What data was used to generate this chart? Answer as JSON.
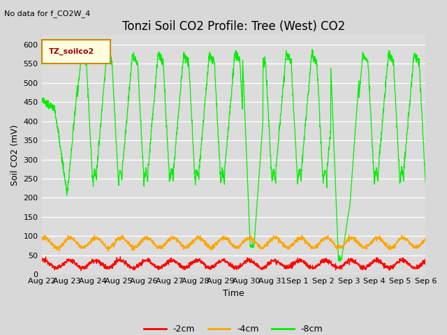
{
  "title": "Tonzi Soil CO2 Profile: Tree (West) CO2",
  "top_left_text": "No data for f_CO2W_4",
  "ylabel": "Soil CO2 (mV)",
  "xlabel": "Time",
  "legend_label": "TZ_soilco2",
  "series_labels": [
    "-2cm",
    "-4cm",
    "-8cm"
  ],
  "series_colors": [
    "#ff0000",
    "#ffa500",
    "#00ee00"
  ],
  "ylim": [
    0,
    625
  ],
  "yticks": [
    0,
    50,
    100,
    150,
    200,
    250,
    300,
    350,
    400,
    450,
    500,
    550,
    600
  ],
  "background_color": "#d8d8d8",
  "plot_bg_color": "#dcdcdc",
  "grid_color": "#ffffff",
  "title_fontsize": 12,
  "axis_fontsize": 9,
  "tick_fontsize": 8
}
